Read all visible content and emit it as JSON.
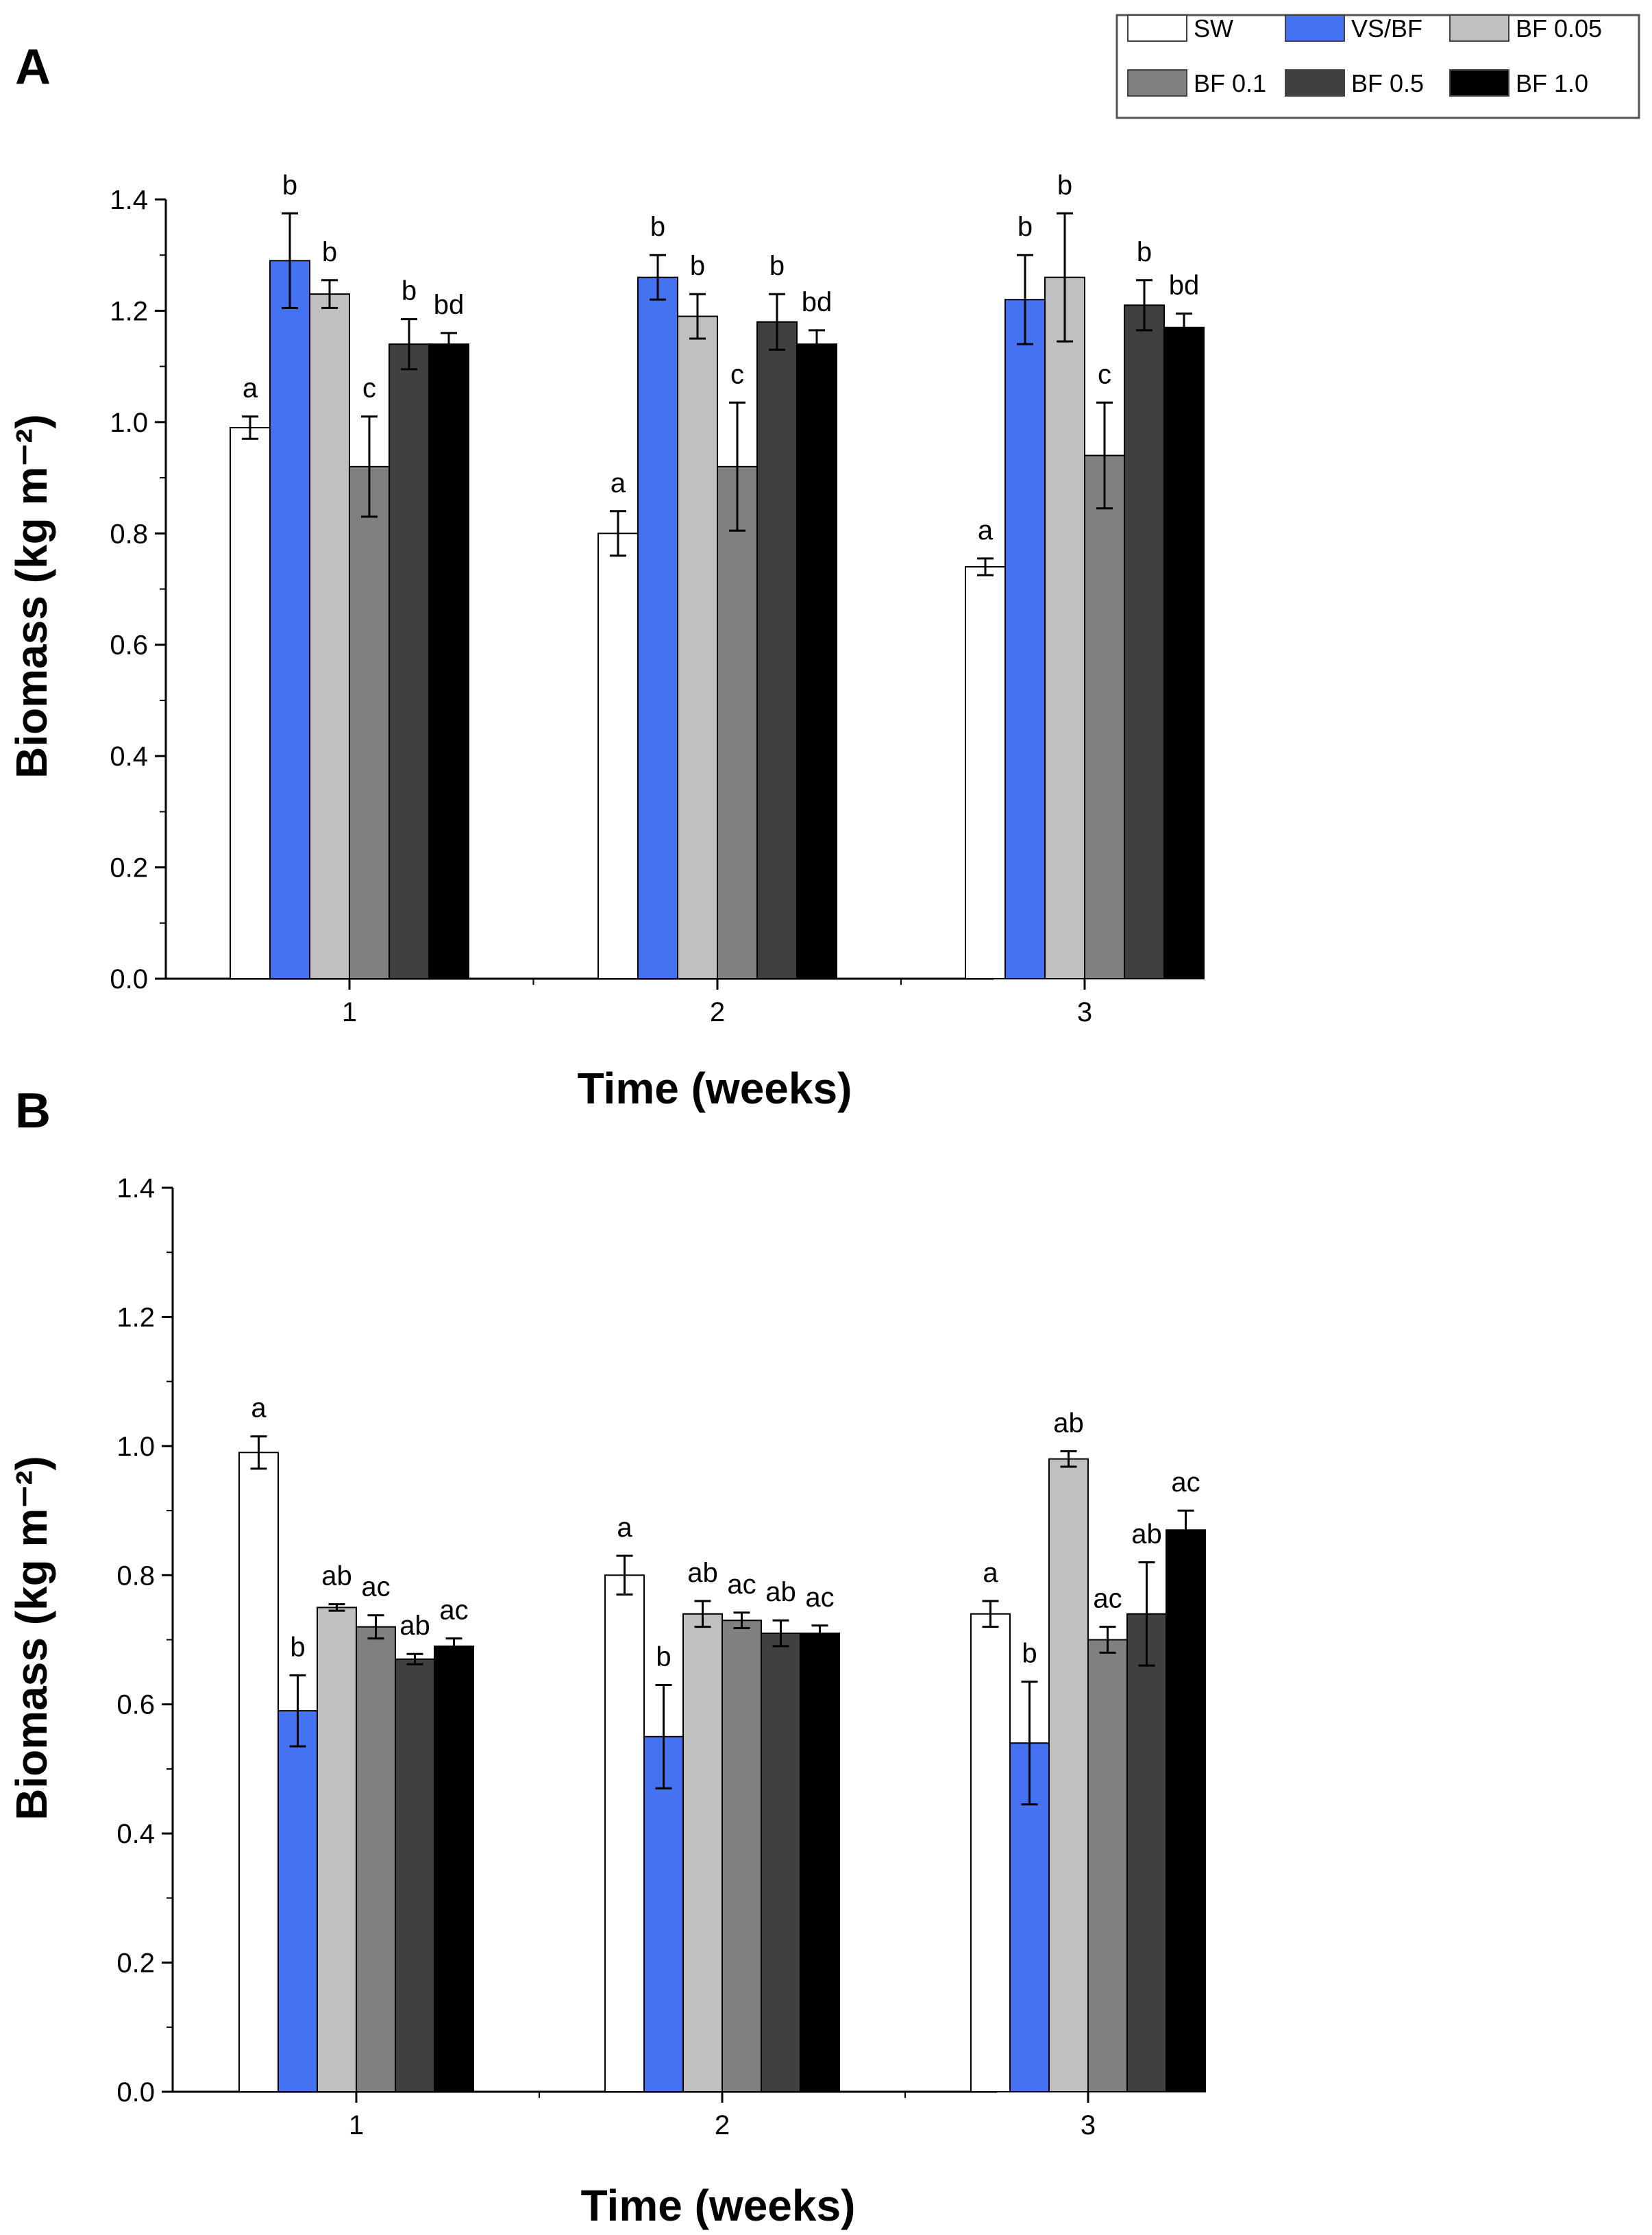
{
  "legend": {
    "items": [
      {
        "label": "SW",
        "color": "#ffffff"
      },
      {
        "label": "VS/BF",
        "color": "#4472f0"
      },
      {
        "label": "BF 0.05",
        "color": "#c0c0c0"
      },
      {
        "label": "BF 0.1",
        "color": "#808080"
      },
      {
        "label": "BF 0.5",
        "color": "#404040"
      },
      {
        "label": "BF 1.0",
        "color": "#000000"
      }
    ]
  },
  "chart_data": [
    {
      "panel": "A",
      "type": "bar",
      "xlabel": "Time (weeks)",
      "ylabel": "Biomass (kg m⁻²)",
      "ylim": [
        0,
        1.4
      ],
      "yticks": [
        "0.0",
        "0.2",
        "0.4",
        "0.6",
        "0.8",
        "1.0",
        "1.2",
        "1.4"
      ],
      "categories": [
        "1",
        "2",
        "3"
      ],
      "series": [
        {
          "name": "SW",
          "values": [
            0.99,
            0.8,
            0.74
          ],
          "errors": [
            0.02,
            0.04,
            0.015
          ],
          "labels": [
            "a",
            "a",
            "a"
          ]
        },
        {
          "name": "VS/BF",
          "values": [
            1.29,
            1.26,
            1.22
          ],
          "errors": [
            0.085,
            0.04,
            0.08
          ],
          "labels": [
            "b",
            "b",
            "b"
          ]
        },
        {
          "name": "BF 0.05",
          "values": [
            1.23,
            1.19,
            1.26
          ],
          "errors": [
            0.025,
            0.04,
            0.115
          ],
          "labels": [
            "b",
            "b",
            "b"
          ]
        },
        {
          "name": "BF 0.1",
          "values": [
            0.92,
            0.92,
            0.94
          ],
          "errors": [
            0.09,
            0.115,
            0.095
          ],
          "labels": [
            "c",
            "c",
            "c"
          ]
        },
        {
          "name": "BF 0.5",
          "values": [
            1.14,
            1.18,
            1.21
          ],
          "errors": [
            0.045,
            0.05,
            0.045
          ],
          "labels": [
            "b",
            "b",
            "b"
          ]
        },
        {
          "name": "BF 1.0",
          "values": [
            1.14,
            1.14,
            1.17
          ],
          "errors": [
            0.02,
            0.025,
            0.025
          ],
          "labels": [
            "bd",
            "bd",
            "bd"
          ]
        }
      ]
    },
    {
      "panel": "B",
      "type": "bar",
      "xlabel": "Time (weeks)",
      "ylabel": "Biomass (kg m⁻²)",
      "ylim": [
        0,
        1.4
      ],
      "yticks": [
        "0.0",
        "0.2",
        "0.4",
        "0.6",
        "0.8",
        "1.0",
        "1.2",
        "1.4"
      ],
      "categories": [
        "1",
        "2",
        "3"
      ],
      "series": [
        {
          "name": "SW",
          "values": [
            0.99,
            0.8,
            0.74
          ],
          "errors": [
            0.025,
            0.03,
            0.02
          ],
          "labels": [
            "a",
            "a",
            "a"
          ]
        },
        {
          "name": "VS/BF",
          "values": [
            0.59,
            0.55,
            0.54
          ],
          "errors": [
            0.055,
            0.08,
            0.095
          ],
          "labels": [
            "b",
            "b",
            "b"
          ]
        },
        {
          "name": "BF 0.05",
          "values": [
            0.75,
            0.74,
            0.98
          ],
          "errors": [
            0.005,
            0.02,
            0.012
          ],
          "labels": [
            "ab",
            "ab",
            "ab"
          ]
        },
        {
          "name": "BF 0.1",
          "values": [
            0.72,
            0.73,
            0.7
          ],
          "errors": [
            0.018,
            0.012,
            0.02
          ],
          "labels": [
            "ac",
            "ac",
            "ac"
          ]
        },
        {
          "name": "BF 0.5",
          "values": [
            0.67,
            0.71,
            0.74
          ],
          "errors": [
            0.008,
            0.02,
            0.08
          ],
          "labels": [
            "ab",
            "ab",
            "ab"
          ]
        },
        {
          "name": "BF 1.0",
          "values": [
            0.69,
            0.71,
            0.87
          ],
          "errors": [
            0.012,
            0.012,
            0.03
          ],
          "labels": [
            "ac",
            "ac",
            "ac"
          ]
        }
      ]
    }
  ]
}
